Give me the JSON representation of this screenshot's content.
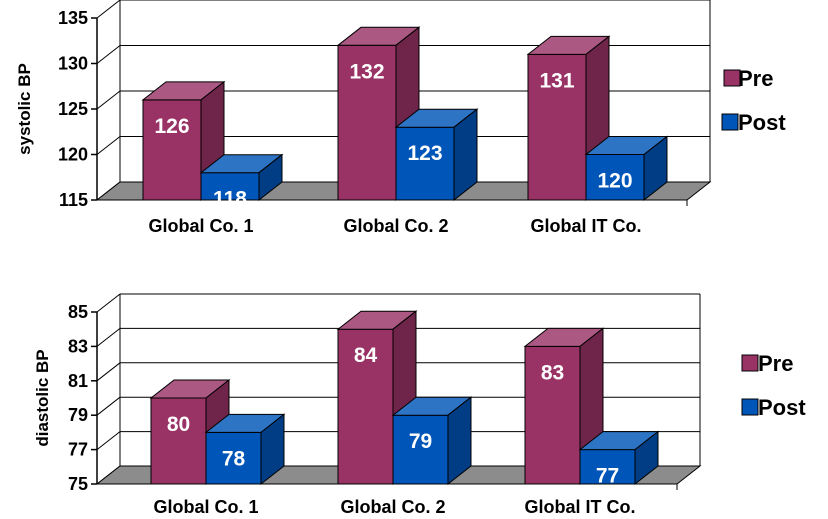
{
  "chart_data": [
    {
      "type": "bar",
      "ylabel": "systolic BP",
      "categories": [
        "Global Co. 1",
        "Global Co. 2",
        "Global IT Co."
      ],
      "ylim": [
        115,
        135
      ],
      "yticks": [
        115,
        120,
        125,
        130,
        135
      ],
      "series": [
        {
          "name": "Pre",
          "values": [
            126,
            132,
            131
          ],
          "color": "#993366"
        },
        {
          "name": "Post",
          "values": [
            118,
            123,
            120
          ],
          "color": "#0055b8"
        }
      ],
      "legend": "right",
      "grid": true
    },
    {
      "type": "bar",
      "ylabel": "diastolic BP",
      "categories": [
        "Global Co. 1",
        "Global Co. 2",
        "Global IT Co."
      ],
      "ylim": [
        75,
        85
      ],
      "yticks": [
        75,
        77,
        79,
        81,
        83,
        85
      ],
      "series": [
        {
          "name": "Pre",
          "values": [
            80,
            84,
            83
          ],
          "color": "#993366"
        },
        {
          "name": "Post",
          "values": [
            78,
            79,
            77
          ],
          "color": "#0055b8"
        }
      ],
      "legend": "right",
      "grid": true
    }
  ]
}
